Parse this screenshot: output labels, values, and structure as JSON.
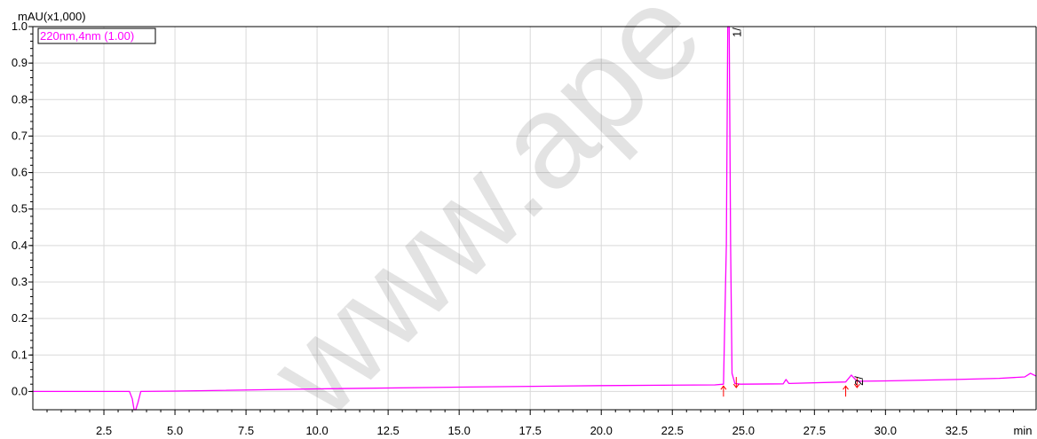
{
  "chart_data": {
    "type": "line",
    "y_unit_label": "mAU(x1,000)",
    "x_unit_label": "min",
    "legend": "220nm,4nm (1.00)",
    "watermark": "www.ape",
    "xlim": [
      0,
      35.3
    ],
    "ylim": [
      -0.05,
      1.0
    ],
    "x_ticks": [
      "2.5",
      "5.0",
      "7.5",
      "10.0",
      "12.5",
      "15.0",
      "17.5",
      "20.0",
      "22.5",
      "25.0",
      "27.5",
      "30.0",
      "32.5"
    ],
    "y_ticks": [
      "0.0",
      "0.1",
      "0.2",
      "0.3",
      "0.4",
      "0.5",
      "0.6",
      "0.7",
      "0.8",
      "0.9",
      "1.0"
    ],
    "grid": true,
    "series": [
      {
        "color": "#ff00ff",
        "x": [
          0,
          3.4,
          3.5,
          3.56,
          3.62,
          3.7,
          3.8,
          5.0,
          10.0,
          15.0,
          20.0,
          24.0,
          24.3,
          24.4,
          24.45,
          24.5,
          24.55,
          24.6,
          24.7,
          24.9,
          26.4,
          26.5,
          26.6,
          28.6,
          28.8,
          29.0,
          30.0,
          32.5,
          34.0,
          34.9,
          35.1,
          35.3
        ],
        "y": [
          0.0,
          0.0,
          -0.02,
          -0.05,
          -0.05,
          -0.03,
          0.0,
          0.001,
          0.007,
          0.012,
          0.016,
          0.018,
          0.02,
          0.4,
          1.0,
          1.0,
          0.4,
          0.05,
          0.022,
          0.02,
          0.021,
          0.033,
          0.022,
          0.026,
          0.045,
          0.028,
          0.029,
          0.033,
          0.036,
          0.04,
          0.05,
          0.042
        ]
      }
    ],
    "peaks": [
      {
        "label": "1/",
        "x": 24.5,
        "y": 1.0,
        "start": 24.3,
        "end": 24.75
      },
      {
        "label": "2/",
        "x": 28.8,
        "y": 0.045,
        "start": 28.6,
        "end": 29.0
      }
    ],
    "marker_color": "#ff0000"
  }
}
